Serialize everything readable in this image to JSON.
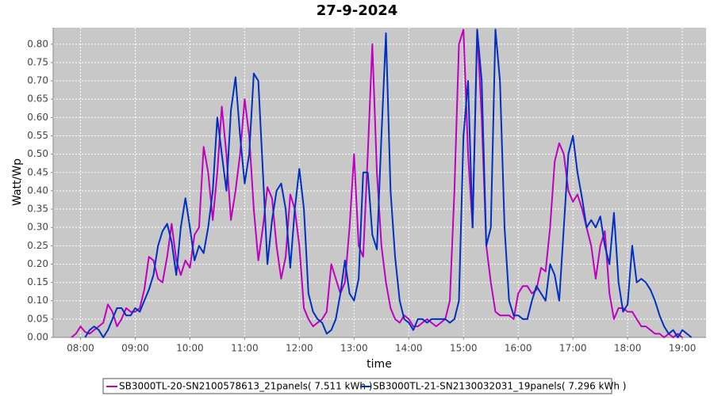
{
  "chart_data": {
    "type": "line",
    "title": "27-9-2024",
    "xlabel": "time",
    "ylabel": "Watt/Wp",
    "x": [
      470,
      475,
      480,
      485,
      490,
      495,
      500,
      505,
      510,
      515,
      520,
      525,
      530,
      535,
      540,
      545,
      550,
      555,
      560,
      565,
      570,
      575,
      580,
      585,
      590,
      595,
      600,
      605,
      610,
      615,
      620,
      625,
      630,
      635,
      640,
      645,
      650,
      655,
      660,
      665,
      670,
      675,
      680,
      685,
      690,
      695,
      700,
      705,
      710,
      715,
      720,
      725,
      730,
      735,
      740,
      745,
      750,
      755,
      760,
      765,
      770,
      775,
      780,
      785,
      790,
      795,
      800,
      805,
      810,
      815,
      820,
      825,
      830,
      835,
      840,
      845,
      850,
      855,
      860,
      865,
      870,
      875,
      880,
      885,
      890,
      895,
      900,
      905,
      910,
      915,
      920,
      925,
      930,
      935,
      940,
      945,
      950,
      955,
      960,
      965,
      970,
      975,
      980,
      985,
      990,
      995,
      1000,
      1005,
      1010,
      1015,
      1020,
      1025,
      1030,
      1035,
      1040,
      1045,
      1050,
      1055,
      1060,
      1065,
      1070,
      1075,
      1080,
      1085,
      1090,
      1095,
      1100,
      1105,
      1110,
      1115,
      1120,
      1125,
      1130,
      1135,
      1140,
      1145,
      1150
    ],
    "series": [
      {
        "name": "SB3000TL-20-SN2100578613_21panels( 7.511 kWh )",
        "color": "#c000c0",
        "values": [
          0.0,
          0.01,
          0.03,
          0.015,
          0.01,
          0.02,
          0.03,
          0.04,
          0.09,
          0.07,
          0.03,
          0.05,
          0.08,
          0.07,
          0.07,
          0.08,
          0.13,
          0.22,
          0.21,
          0.16,
          0.15,
          0.22,
          0.31,
          0.21,
          0.17,
          0.21,
          0.19,
          0.28,
          0.3,
          0.52,
          0.45,
          0.32,
          0.45,
          0.63,
          0.5,
          0.32,
          0.4,
          0.5,
          0.65,
          0.55,
          0.35,
          0.21,
          0.3,
          0.41,
          0.38,
          0.25,
          0.16,
          0.22,
          0.39,
          0.35,
          0.25,
          0.08,
          0.05,
          0.03,
          0.04,
          0.05,
          0.07,
          0.2,
          0.16,
          0.12,
          0.15,
          0.3,
          0.5,
          0.25,
          0.22,
          0.5,
          0.8,
          0.45,
          0.25,
          0.15,
          0.08,
          0.05,
          0.04,
          0.06,
          0.05,
          0.03,
          0.03,
          0.04,
          0.05,
          0.04,
          0.03,
          0.04,
          0.05,
          0.1,
          0.4,
          0.8,
          0.84,
          0.5,
          0.3,
          0.84,
          0.6,
          0.25,
          0.15,
          0.07,
          0.06,
          0.06,
          0.06,
          0.05,
          0.12,
          0.14,
          0.14,
          0.12,
          0.13,
          0.19,
          0.18,
          0.3,
          0.48,
          0.53,
          0.5,
          0.4,
          0.37,
          0.39,
          0.35,
          0.3,
          0.25,
          0.16,
          0.25,
          0.29,
          0.12,
          0.05,
          0.08,
          0.08,
          0.07,
          0.07,
          0.05,
          0.03,
          0.03,
          0.02,
          0.01,
          0.01,
          0.0,
          0.01,
          0.0,
          0.01,
          0.0,
          null,
          null
        ]
      },
      {
        "name": "SB3000TL-21-SN2130032031_19panels( 7.296 kWh )",
        "color": "#0030c0",
        "values": [
          null,
          null,
          null,
          0.0,
          0.02,
          0.03,
          0.02,
          0.0,
          0.02,
          0.05,
          0.08,
          0.08,
          0.06,
          0.06,
          0.08,
          0.07,
          0.1,
          0.13,
          0.17,
          0.25,
          0.29,
          0.31,
          0.26,
          0.17,
          0.3,
          0.38,
          0.3,
          0.21,
          0.25,
          0.23,
          0.3,
          0.4,
          0.6,
          0.5,
          0.4,
          0.62,
          0.71,
          0.55,
          0.42,
          0.5,
          0.72,
          0.7,
          0.45,
          0.2,
          0.32,
          0.4,
          0.42,
          0.35,
          0.19,
          0.35,
          0.46,
          0.35,
          0.12,
          0.07,
          0.05,
          0.04,
          0.01,
          0.02,
          0.05,
          0.12,
          0.21,
          0.12,
          0.1,
          0.16,
          0.45,
          0.45,
          0.28,
          0.24,
          0.55,
          0.83,
          0.4,
          0.22,
          0.1,
          0.05,
          0.04,
          0.02,
          0.05,
          0.05,
          0.04,
          0.05,
          0.05,
          0.05,
          0.05,
          0.04,
          0.05,
          0.1,
          0.55,
          0.7,
          0.3,
          0.84,
          0.7,
          0.25,
          0.3,
          0.84,
          0.7,
          0.3,
          0.1,
          0.06,
          0.06,
          0.05,
          0.05,
          0.1,
          0.14,
          0.12,
          0.1,
          0.2,
          0.17,
          0.1,
          0.3,
          0.5,
          0.55,
          0.45,
          0.38,
          0.3,
          0.32,
          0.3,
          0.33,
          0.25,
          0.2,
          0.34,
          0.15,
          0.07,
          0.09,
          0.25,
          0.15,
          0.16,
          0.15,
          0.13,
          0.1,
          0.06,
          0.03,
          0.01,
          0.02,
          0.0,
          0.02,
          0.01,
          0.0
        ]
      }
    ],
    "xlim": [
      450,
      1166
    ],
    "xticks": [
      {
        "value": 480,
        "label": "08:00"
      },
      {
        "value": 540,
        "label": "09:00"
      },
      {
        "value": 600,
        "label": "10:00"
      },
      {
        "value": 660,
        "label": "11:00"
      },
      {
        "value": 720,
        "label": "12:00"
      },
      {
        "value": 780,
        "label": "13:00"
      },
      {
        "value": 840,
        "label": "14:00"
      },
      {
        "value": 900,
        "label": "15:00"
      },
      {
        "value": 960,
        "label": "16:00"
      },
      {
        "value": 1020,
        "label": "17:00"
      },
      {
        "value": 1080,
        "label": "18:00"
      },
      {
        "value": 1140,
        "label": "19:00"
      }
    ],
    "ylim": [
      0,
      0.845
    ],
    "yticks": [
      {
        "value": 0,
        "label": "0.00"
      },
      {
        "value": 0.05,
        "label": "0.05"
      },
      {
        "value": 0.1,
        "label": "0.10"
      },
      {
        "value": 0.15,
        "label": "0.15"
      },
      {
        "value": 0.2,
        "label": "0.20"
      },
      {
        "value": 0.25,
        "label": "0.25"
      },
      {
        "value": 0.3,
        "label": "0.30"
      },
      {
        "value": 0.35,
        "label": "0.35"
      },
      {
        "value": 0.4,
        "label": "0.40"
      },
      {
        "value": 0.45,
        "label": "0.45"
      },
      {
        "value": 0.5,
        "label": "0.50"
      },
      {
        "value": 0.55,
        "label": "0.55"
      },
      {
        "value": 0.6,
        "label": "0.60"
      },
      {
        "value": 0.65,
        "label": "0.65"
      },
      {
        "value": 0.7,
        "label": "0.70"
      },
      {
        "value": 0.75,
        "label": "0.75"
      },
      {
        "value": 0.8,
        "label": "0.80"
      }
    ],
    "grid": true,
    "legend": "bottom"
  }
}
